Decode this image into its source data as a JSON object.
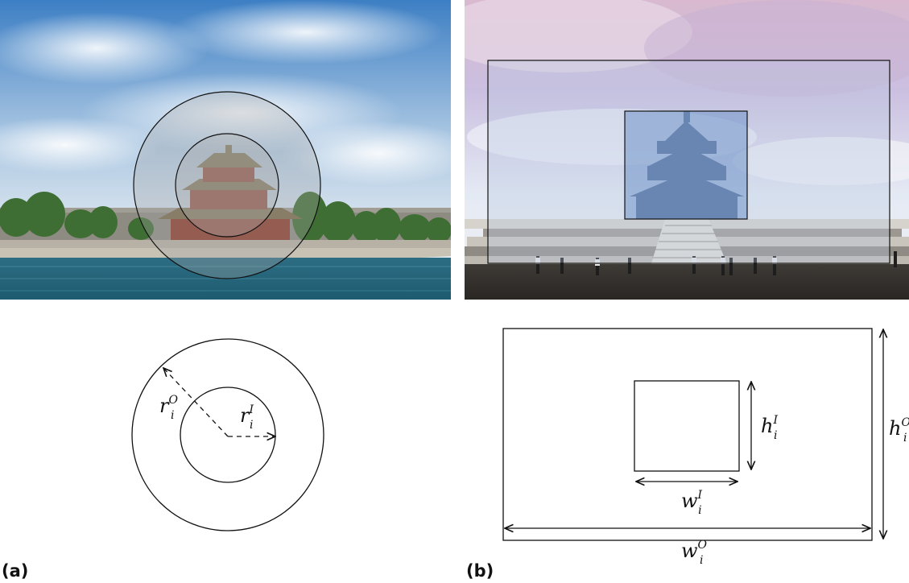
{
  "figure": {
    "panel_a": {
      "label": "(a)",
      "photo_alt": "photo-palace-corner-tower",
      "outer_radius": {
        "base": "r",
        "sup": "O",
        "sub": "i"
      },
      "inner_radius": {
        "base": "r",
        "sup": "I",
        "sub": "i"
      }
    },
    "panel_b": {
      "label": "(b)",
      "photo_alt": "photo-temple-of-heaven",
      "inner_height": {
        "base": "h",
        "sup": "I",
        "sub": "i"
      },
      "outer_height": {
        "base": "h",
        "sup": "O",
        "sub": "i"
      },
      "inner_width": {
        "base": "w",
        "sup": "I",
        "sub": "i"
      },
      "outer_width": {
        "base": "w",
        "sup": "O",
        "sub": "i"
      }
    },
    "colors": {
      "inner_region_fill": "#8fa7cf",
      "outer_region_fill": "#b9c8e0",
      "circle_tint": "#a9a9a9",
      "stroke": "#111111"
    }
  }
}
